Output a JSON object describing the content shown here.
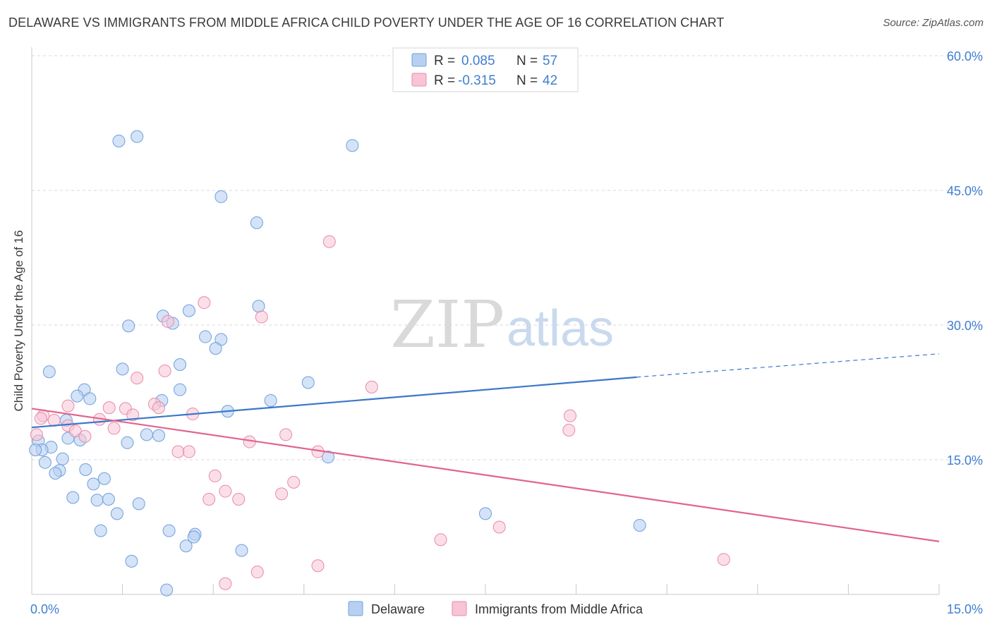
{
  "title": "DELAWARE VS IMMIGRANTS FROM MIDDLE AFRICA CHILD POVERTY UNDER THE AGE OF 16 CORRELATION CHART",
  "source": "Source: ZipAtlas.com",
  "watermark": {
    "zip": "ZIP",
    "atlas": "atlas"
  },
  "colors": {
    "blue_fill": "#b7d0f2",
    "blue_stroke": "#6f9fdc",
    "blue_line": "#3a78c9",
    "pink_fill": "#f7c5d5",
    "pink_stroke": "#e88aa8",
    "pink_line": "#e0648e",
    "axis_text": "#3f7fd0",
    "grid": "#d8d8d8"
  },
  "legend_top": {
    "rows": [
      {
        "r_label": "R =",
        "r_value": "0.085",
        "n_label": "N =",
        "n_value": "57"
      },
      {
        "r_label": "R =",
        "r_value": "-0.315",
        "n_label": "N =",
        "n_value": "42"
      }
    ]
  },
  "legend_bottom": {
    "delaware": "Delaware",
    "immigrants": "Immigrants from Middle Africa"
  },
  "chart_data": {
    "type": "scatter",
    "title": "DELAWARE VS IMMIGRANTS FROM MIDDLE AFRICA CHILD POVERTY UNDER THE AGE OF 16 CORRELATION CHART",
    "xlabel": "",
    "ylabel": "Child Poverty Under the Age of 16",
    "xlim": [
      0,
      15
    ],
    "ylim": [
      0,
      60
    ],
    "x_tick_labels": {
      "left": "0.0%",
      "right": "15.0%"
    },
    "y_ticks": [
      15,
      30,
      45,
      60
    ],
    "y_tick_labels": [
      "15.0%",
      "30.0%",
      "45.0%",
      "60.0%"
    ],
    "grid": true,
    "series": [
      {
        "name": "Delaware",
        "r": 0.085,
        "n": 57,
        "trend": {
          "x0": 0,
          "y0": 18.6,
          "x1": 10.0,
          "y1": 24.2,
          "dashed_to_x": 15,
          "dashed_to_y": 26.8
        },
        "points": [
          [
            1.44,
            50.5
          ],
          [
            1.74,
            51.0
          ],
          [
            5.3,
            50.0
          ],
          [
            3.13,
            44.3
          ],
          [
            3.72,
            41.4
          ],
          [
            3.75,
            32.1
          ],
          [
            2.6,
            31.6
          ],
          [
            2.17,
            31.0
          ],
          [
            2.33,
            30.2
          ],
          [
            1.6,
            29.9
          ],
          [
            2.87,
            28.7
          ],
          [
            3.13,
            28.4
          ],
          [
            3.04,
            27.4
          ],
          [
            2.45,
            25.6
          ],
          [
            1.5,
            25.1
          ],
          [
            0.29,
            24.8
          ],
          [
            4.57,
            23.6
          ],
          [
            0.87,
            22.8
          ],
          [
            2.45,
            22.8
          ],
          [
            0.75,
            22.1
          ],
          [
            0.96,
            21.8
          ],
          [
            2.15,
            21.6
          ],
          [
            3.95,
            21.6
          ],
          [
            3.24,
            20.4
          ],
          [
            0.57,
            19.4
          ],
          [
            0.11,
            17.1
          ],
          [
            0.6,
            17.4
          ],
          [
            0.8,
            17.2
          ],
          [
            1.9,
            17.8
          ],
          [
            2.1,
            17.7
          ],
          [
            1.58,
            16.9
          ],
          [
            0.32,
            16.4
          ],
          [
            0.17,
            16.1
          ],
          [
            0.06,
            16.1
          ],
          [
            0.51,
            15.1
          ],
          [
            4.9,
            15.3
          ],
          [
            0.22,
            14.7
          ],
          [
            0.89,
            13.9
          ],
          [
            0.46,
            13.8
          ],
          [
            0.39,
            13.5
          ],
          [
            1.2,
            12.9
          ],
          [
            1.02,
            12.3
          ],
          [
            0.68,
            10.8
          ],
          [
            1.08,
            10.5
          ],
          [
            1.27,
            10.6
          ],
          [
            1.77,
            10.1
          ],
          [
            1.41,
            9.0
          ],
          [
            7.5,
            9.0
          ],
          [
            10.05,
            7.7
          ],
          [
            1.14,
            7.1
          ],
          [
            2.27,
            7.1
          ],
          [
            2.7,
            6.7
          ],
          [
            2.68,
            6.4
          ],
          [
            2.55,
            5.4
          ],
          [
            3.47,
            4.9
          ],
          [
            1.65,
            3.7
          ],
          [
            2.23,
            0.5
          ]
        ]
      },
      {
        "name": "Immigrants from Middle Africa",
        "r": -0.315,
        "n": 42,
        "trend": {
          "x0": 0,
          "y0": 20.7,
          "x1": 15,
          "y1": 5.9
        },
        "points": [
          [
            4.92,
            39.3
          ],
          [
            2.85,
            32.5
          ],
          [
            3.8,
            30.9
          ],
          [
            2.25,
            30.4
          ],
          [
            2.2,
            24.9
          ],
          [
            1.74,
            24.1
          ],
          [
            5.62,
            23.1
          ],
          [
            0.6,
            21.0
          ],
          [
            2.03,
            21.2
          ],
          [
            1.28,
            20.8
          ],
          [
            1.55,
            20.7
          ],
          [
            2.1,
            20.8
          ],
          [
            2.66,
            20.1
          ],
          [
            0.19,
            19.9
          ],
          [
            0.37,
            19.4
          ],
          [
            1.12,
            19.5
          ],
          [
            8.9,
            19.9
          ],
          [
            0.15,
            19.6
          ],
          [
            0.6,
            18.8
          ],
          [
            0.72,
            18.2
          ],
          [
            1.36,
            18.5
          ],
          [
            1.67,
            20.0
          ],
          [
            0.88,
            17.6
          ],
          [
            4.2,
            17.8
          ],
          [
            8.88,
            18.3
          ],
          [
            3.6,
            17.0
          ],
          [
            2.42,
            15.9
          ],
          [
            2.6,
            15.9
          ],
          [
            4.73,
            15.9
          ],
          [
            3.03,
            13.2
          ],
          [
            4.33,
            12.5
          ],
          [
            3.2,
            11.5
          ],
          [
            4.13,
            11.2
          ],
          [
            2.93,
            10.6
          ],
          [
            3.42,
            10.6
          ],
          [
            7.73,
            7.5
          ],
          [
            6.76,
            6.1
          ],
          [
            11.44,
            3.9
          ],
          [
            4.73,
            3.2
          ],
          [
            3.73,
            2.5
          ],
          [
            3.2,
            1.2
          ],
          [
            0.08,
            17.8
          ]
        ]
      }
    ]
  }
}
